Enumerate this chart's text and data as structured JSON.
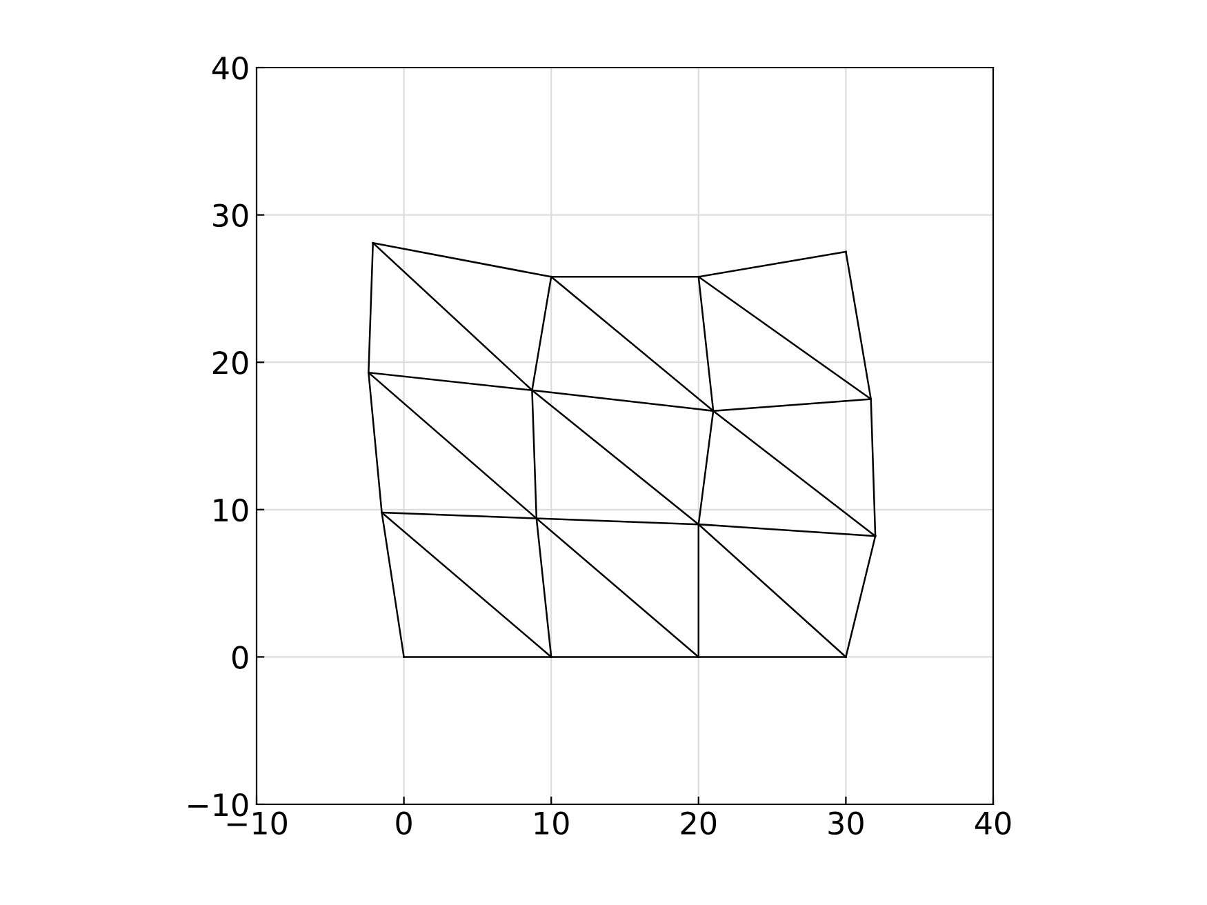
{
  "chart_data": {
    "type": "line",
    "xlim": [
      -10,
      40
    ],
    "ylim": [
      -10,
      40
    ],
    "xticks": [
      -10,
      0,
      10,
      20,
      30,
      40
    ],
    "yticks": [
      -10,
      0,
      10,
      20,
      30,
      40
    ],
    "grid": true,
    "marker": "none",
    "line_style": "solid",
    "series": [
      {
        "color": "#000000",
        "x": [
          0,
          10,
          20,
          30
        ],
        "values": [
          0,
          0,
          0,
          0
        ]
      },
      {
        "color": "#000000",
        "x": [
          -1.5,
          9.0,
          20.0,
          32.0
        ],
        "values": [
          9.8,
          9.4,
          9.0,
          8.2
        ]
      },
      {
        "color": "#000000",
        "x": [
          -2.4,
          8.7,
          21.0,
          31.7
        ],
        "values": [
          19.3,
          18.1,
          16.7,
          17.5
        ]
      },
      {
        "color": "#000000",
        "x": [
          -2.1,
          10.0,
          20.0,
          30.0
        ],
        "values": [
          28.1,
          25.8,
          25.8,
          27.5
        ]
      },
      {
        "color": "#000000",
        "x": [
          0,
          -1.5,
          -2.4,
          -2.1
        ],
        "values": [
          0,
          9.8,
          19.3,
          28.1
        ]
      },
      {
        "color": "#000000",
        "x": [
          10,
          9.0,
          8.7,
          10.0
        ],
        "values": [
          0,
          9.4,
          18.1,
          25.8
        ]
      },
      {
        "color": "#000000",
        "x": [
          20,
          20.0,
          21.0,
          20.0
        ],
        "values": [
          0,
          9.0,
          16.7,
          25.8
        ]
      },
      {
        "color": "#000000",
        "x": [
          30,
          32.0,
          31.7,
          30.0
        ],
        "values": [
          0,
          8.2,
          17.5,
          27.5
        ]
      },
      {
        "color": "#000000",
        "x": [
          -2.1,
          8.7,
          20.0,
          30
        ],
        "values": [
          28.1,
          18.1,
          9.0,
          0
        ]
      },
      {
        "color": "#000000",
        "x": [
          10.0,
          21.0,
          32.0
        ],
        "values": [
          25.8,
          16.7,
          8.2
        ]
      },
      {
        "color": "#000000",
        "x": [
          20.0,
          31.7
        ],
        "values": [
          25.8,
          17.5
        ]
      },
      {
        "color": "#000000",
        "x": [
          -2.4,
          9.0,
          20
        ],
        "values": [
          19.3,
          9.4,
          0
        ]
      },
      {
        "color": "#000000",
        "x": [
          -1.5,
          10
        ],
        "values": [
          9.8,
          0
        ]
      }
    ]
  }
}
